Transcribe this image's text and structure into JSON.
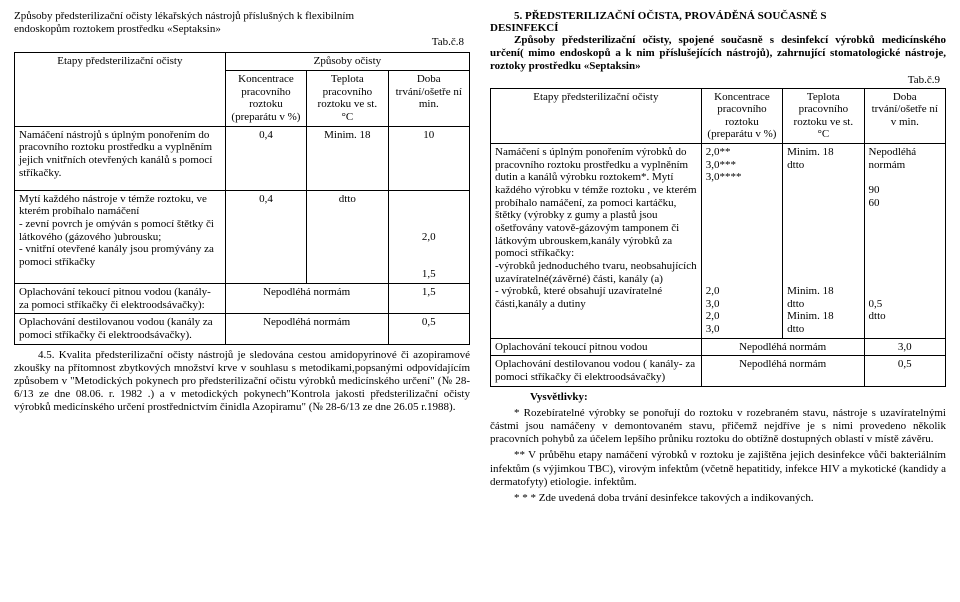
{
  "left": {
    "title1": "Způsoby předsterilizační očisty lékařských nástrojů příslušných k flexibilním",
    "title2": "endoskopům roztokem prostředku «Septaksin»",
    "tab": "Tab.č.8",
    "superheader": "Způsoby očisty",
    "colheads": {
      "c1": "Etapy předsterilizační očisty",
      "c2": "Koncentrace pracovního roztoku (preparátu v %)",
      "c3": "Teplota pracovního roztoku ve st. °C",
      "c4": "Doba trvání/ošetře ní min."
    },
    "rows": [
      {
        "c1": "Namáčení nástrojů s úplným ponořením do pracovního roztoku prostředku a vyplněním jejich vnitřních otevřených kanálů s pomocí stříkačky.",
        "c2": "0,4",
        "c3": "Minim. 18",
        "c4": "10"
      },
      {
        "c1": "Mytí každého nástroje v témže roztoku, ve kterém probíhalo namáčení\n - zevní povrch je omýván s pomocí štětky či látkového (gázového )ubrousku;\n- vnitřní otevřené kanály jsou promývány  za pomoci stříkačky",
        "c2": "0,4",
        "c3": "dtto",
        "c4": "\n\n\n2,0\n\n\n1,5"
      },
      {
        "c1": "Oplachování tekoucí pitnou vodou (kanály- za pomoci stříkačky či elektroodsávačky):",
        "c2c3": "Nepodléhá normám",
        "c4": "1,5"
      },
      {
        "c1": "Oplachování destilovanou vodou (kanály za pomoci stříkačky či elektroodsávačky).",
        "c2c3": "Nepodléhá normám",
        "c4": "0,5"
      }
    ],
    "para": "4.5. Kvalita předsterilizační očisty nástrojů je sledována cestou amidopyrinové či azopiramové zkoušky na přítomnost zbytkových množství krve v souhlasu s metodikami,popsanými odpovídajícím způsobem v  \"Metodických pokynech pro předsterilizační očistu výrobků medicínského určení\" (№ 28-6/13 ze dne  08.06. r. 1982 .) a v metodických pokynech\"Kontrola jakosti předsterilizační očisty výrobků medicínského určení prostřednictvím činidla Azopiramu\" (№ 28-6/13 ze dne 26.05 r.1988)."
  },
  "right": {
    "head1": "5. PŘEDSTERILIZAČNÍ OČISTA, PROVÁDĚNÁ SOUČASNĚ S",
    "head2": "DESINFEKCÍ",
    "intro": "Způsoby předsterilizační očisty, spojené současně s desinfekcí výrobků medicínského určení( mimo endoskopů a k nim příslušejících nástrojů), zahrnující stomatologické nástroje, roztoky prostředku «Septaksin»",
    "tab": "Tab.č.9",
    "colheads": {
      "c1": "Etapy předsterilizační očisty",
      "c2": "Koncentrace pracovního roztoku (preparátu v %)",
      "c3": "Teplota pracovního roztoku ve st. °C",
      "c4": "Doba trvání/ošetře ní v min."
    },
    "row1": {
      "c1": "Namáčení s úplným ponořením výrobků do pracovního roztoku prostředku a vyplněním dutin a kanálů výrobku roztokem*. Mytí každého výrobku v témže roztoku , ve kterém probíhalo namáčení, za pomoci kartáčku, štětky (výrobky z gumy a plastů jsou ošetřovány vatově-gázovým tamponem či látkovým ubrouskem,kanály výrobků za pomoci stříkačky:\n-výrobků jednoduchého tvaru, neobsahujících uzavíratelné(závěrné) části, kanály (a)\n- výrobků, které obsahují uzavíratelné části,kanály a dutiny",
      "c2": "2,0**\n3,0***\n3,0****\n\n\n\n\n\n\n\n\n2,0\n3,0\n2,0\n3,0",
      "c3": "Minim. 18\ndtto\n\n\n\n\n\n\n\n\n\nMinim. 18\ndtto\nMinim. 18\ndtto",
      "c4": "Nepodléhá normám\n\n90\n60\n\n\n\n\n\n\n\n0,5\ndtto"
    },
    "row2": {
      "c1": "Oplachování tekoucí pitnou vodou",
      "c2c3": "Nepodléhá normám",
      "c4": "3,0"
    },
    "row3": {
      "c1": "Oplachování destilovanou vodou ( kanály- za pomoci stříkačky či elektroodsávačky)",
      "c2c3": "Nepodléhá normám",
      "c4": "0,5"
    },
    "notesHead": "Vysvětlivky:",
    "note1": "*   Rozebíratelné výrobky se ponořují do roztoku v rozebraném stavu, nástroje s uzavíratelnými částmi jsou namáčeny v demontovaném  stavu, přičemž nejdříve je s nimi provedeno několik pracovních pohybů za účelem  lepšího průniku roztoku do obtížně dostupných oblastí v místě závěru.",
    "note2": "** V průběhu etapy namáčení výrobků v roztoku je zajištěna  jejich desinfekce vůči bakteriálním infektům (s výjimkou TBC), virovým infektům (včetně hepatitidy, infekce HIV a mykotické (kandidy a dermatofyty) etiologie. infektům.",
    "note3": "* * * Zde uvedená doba trvání desinfekce takových a indikovaných."
  },
  "style": {
    "fontFamily": "Times New Roman",
    "fontSizePt": 11,
    "background": "#ffffff",
    "textColor": "#000000",
    "borderColor": "#000000"
  }
}
